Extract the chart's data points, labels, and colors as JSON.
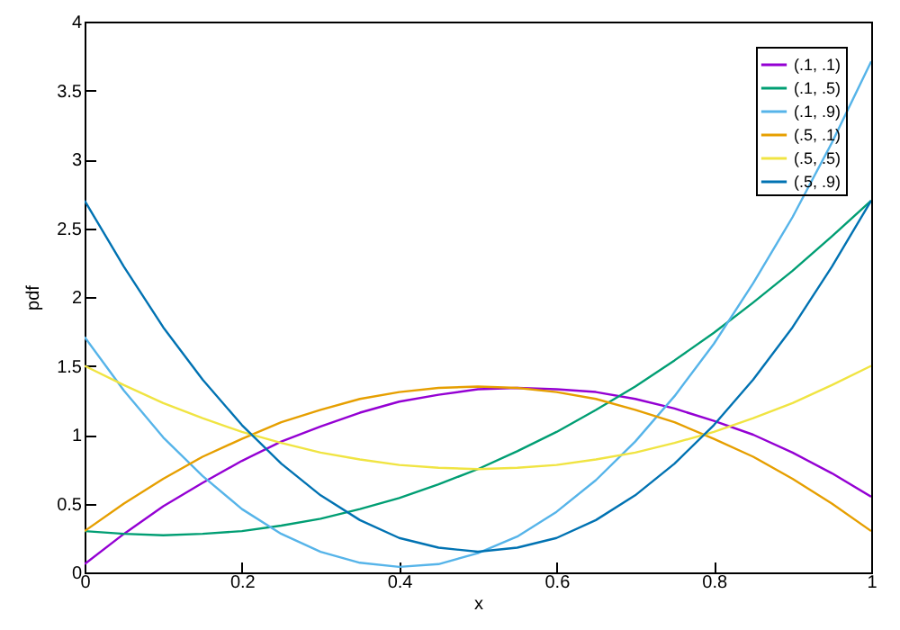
{
  "chart_data": {
    "type": "line",
    "xlabel": "x",
    "ylabel": "pdf",
    "x": [
      0,
      0.05,
      0.1,
      0.15,
      0.2,
      0.25,
      0.3,
      0.35,
      0.4,
      0.45,
      0.5,
      0.55,
      0.6,
      0.65,
      0.7,
      0.75,
      0.8,
      0.85,
      0.9,
      0.95,
      1
    ],
    "series": [
      {
        "name": "(.1, .1)",
        "color": "#9400d3",
        "values": [
          0.06,
          0.28,
          0.48,
          0.65,
          0.81,
          0.95,
          1.06,
          1.16,
          1.24,
          1.29,
          1.33,
          1.34,
          1.33,
          1.31,
          1.26,
          1.19,
          1.1,
          1.0,
          0.87,
          0.72,
          0.55
        ]
      },
      {
        "name": "(.1, .5)",
        "color": "#009e73",
        "values": [
          0.3,
          0.28,
          0.27,
          0.28,
          0.3,
          0.34,
          0.39,
          0.46,
          0.54,
          0.64,
          0.75,
          0.88,
          1.02,
          1.18,
          1.35,
          1.54,
          1.74,
          1.96,
          2.19,
          2.44,
          2.7
        ]
      },
      {
        "name": "(.1, .9)",
        "color": "#56b4e9",
        "values": [
          1.71,
          1.32,
          0.98,
          0.7,
          0.46,
          0.28,
          0.15,
          0.07,
          0.04,
          0.06,
          0.14,
          0.26,
          0.44,
          0.67,
          0.95,
          1.28,
          1.66,
          2.1,
          2.58,
          3.12,
          3.71
        ]
      },
      {
        "name": "(.5, .1)",
        "color": "#e69f00",
        "values": [
          0.3,
          0.5,
          0.68,
          0.84,
          0.97,
          1.09,
          1.18,
          1.26,
          1.31,
          1.34,
          1.35,
          1.34,
          1.31,
          1.26,
          1.18,
          1.09,
          0.97,
          0.84,
          0.68,
          0.5,
          0.3
        ]
      },
      {
        "name": "(.5, .5)",
        "color": "#f0e442",
        "values": [
          1.5,
          1.36,
          1.23,
          1.12,
          1.02,
          0.94,
          0.87,
          0.82,
          0.78,
          0.76,
          0.75,
          0.76,
          0.78,
          0.82,
          0.87,
          0.94,
          1.02,
          1.12,
          1.23,
          1.36,
          1.5
        ]
      },
      {
        "name": "(.5, .9)",
        "color": "#0072b2",
        "values": [
          2.7,
          2.22,
          1.78,
          1.4,
          1.07,
          0.79,
          0.56,
          0.38,
          0.25,
          0.18,
          0.15,
          0.18,
          0.25,
          0.38,
          0.56,
          0.79,
          1.07,
          1.4,
          1.78,
          2.22,
          2.7
        ]
      }
    ],
    "xlim": [
      0,
      1
    ],
    "xticks": [
      0,
      0.2,
      0.4,
      0.6,
      0.8,
      1
    ],
    "ylim": [
      0,
      4
    ],
    "yticks": [
      0,
      0.5,
      1,
      1.5,
      2,
      2.5,
      3,
      3.5,
      4
    ],
    "legend": "top right",
    "line_style": "solid"
  }
}
